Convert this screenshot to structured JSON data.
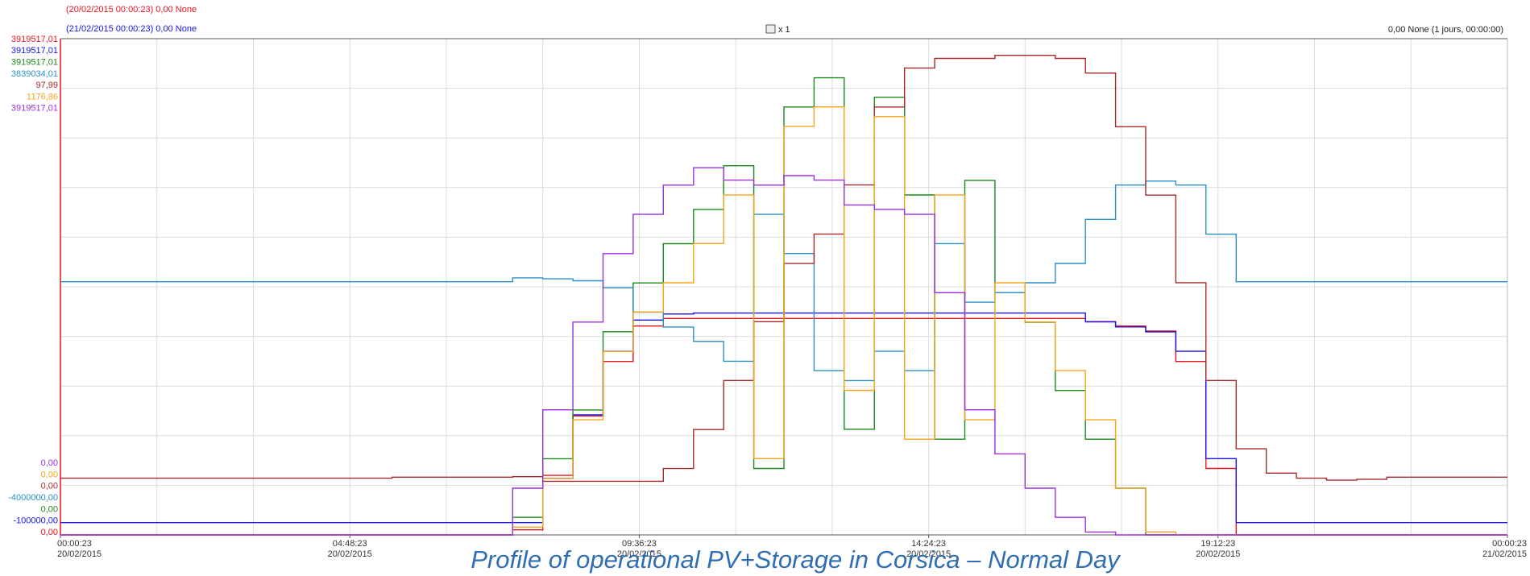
{
  "chart_data": {
    "type": "line",
    "header_lines": [
      {
        "text": "(20/02/2015 00:00:23) 0,00 None",
        "color": "#e8141b"
      },
      {
        "text": "(21/02/2015 00:00:23) 0,00 None",
        "color": "#1515e0"
      }
    ],
    "zoom_label": "x 1",
    "cursor_info": "0,00 None (1 jours, 00:00:00)",
    "caption": "Profile of operational PV+Storage in Corsica – Normal Day",
    "grid": true,
    "xlim": [
      "20/02/2015 00:00:23",
      "21/02/2015 00:00:23"
    ],
    "xticks": [
      {
        "time": "00:00:23",
        "date": "20/02/2015"
      },
      {
        "time": "04:48:23",
        "date": "20/02/2015"
      },
      {
        "time": "09:36:23",
        "date": "20/02/2015"
      },
      {
        "time": "14:24:23",
        "date": "20/02/2015"
      },
      {
        "time": "19:12:23",
        "date": "20/02/2015"
      },
      {
        "time": "00:00:23",
        "date": "21/02/2015"
      }
    ],
    "x": [
      "20/02/2015 00:00:23",
      "20/02/2015 00:30:23",
      "20/02/2015 01:00:23",
      "20/02/2015 01:30:23",
      "20/02/2015 02:00:23",
      "20/02/2015 02:30:23",
      "20/02/2015 03:00:23",
      "20/02/2015 03:30:23",
      "20/02/2015 04:00:23",
      "20/02/2015 04:30:23",
      "20/02/2015 05:00:23",
      "20/02/2015 05:30:23",
      "20/02/2015 06:00:23",
      "20/02/2015 06:30:23",
      "20/02/2015 07:00:23",
      "20/02/2015 07:30:23",
      "20/02/2015 08:00:23",
      "20/02/2015 08:30:23",
      "20/02/2015 09:00:23",
      "20/02/2015 09:30:23",
      "20/02/2015 10:00:23",
      "20/02/2015 10:30:23",
      "20/02/2015 11:00:23",
      "20/02/2015 11:30:23",
      "20/02/2015 12:00:23",
      "20/02/2015 12:30:23",
      "20/02/2015 13:00:23",
      "20/02/2015 13:30:23",
      "20/02/2015 14:00:23",
      "20/02/2015 14:30:23",
      "20/02/2015 15:00:23",
      "20/02/2015 15:30:23",
      "20/02/2015 16:00:23",
      "20/02/2015 16:30:23",
      "20/02/2015 17:00:23",
      "20/02/2015 17:30:23",
      "20/02/2015 18:00:23",
      "20/02/2015 18:30:23",
      "20/02/2015 19:00:23",
      "20/02/2015 19:30:23",
      "20/02/2015 20:00:23",
      "20/02/2015 20:30:23",
      "20/02/2015 21:00:23",
      "20/02/2015 21:30:23",
      "20/02/2015 22:00:23",
      "20/02/2015 22:30:23",
      "20/02/2015 23:00:23",
      "20/02/2015 23:30:23",
      "21/02/2015 00:00:23"
    ],
    "series": [
      {
        "color": "#e8141b",
        "ylim": [
          0,
          3919517.01
        ],
        "yticks": [
          {
            "value": 0,
            "label": "0,00"
          },
          {
            "value": 3919517.01,
            "label": "3919517,01"
          }
        ],
        "values": [
          0,
          0,
          0,
          0,
          0,
          0,
          0,
          0,
          0,
          0,
          0,
          0,
          0,
          0,
          0,
          40000,
          470000,
          940000,
          1370000,
          1650000,
          1710000,
          1710000,
          1710000,
          1710000,
          1710000,
          1710000,
          1710000,
          1710000,
          1710000,
          1710000,
          1710000,
          1710000,
          1710000,
          1710000,
          1685000,
          1650000,
          1610000,
          1370000,
          525000,
          0,
          0,
          0,
          0,
          0,
          0,
          0,
          0,
          0,
          0
        ]
      },
      {
        "color": "#1515e0",
        "ylim": [
          -100000,
          3919517.01
        ],
        "yticks": [
          {
            "value": -100000,
            "label": "-100000,00"
          },
          {
            "value": 3919517.01,
            "label": "3919517,01"
          }
        ],
        "values": [
          0,
          0,
          0,
          0,
          0,
          0,
          0,
          0,
          0,
          0,
          0,
          0,
          0,
          0,
          0,
          0,
          358000,
          873000,
          1387000,
          1640000,
          1689000,
          1697000,
          1697000,
          1697000,
          1697000,
          1697000,
          1697000,
          1697000,
          1697000,
          1697000,
          1697000,
          1697000,
          1697000,
          1697000,
          1625000,
          1585000,
          1545000,
          1387000,
          518000,
          0,
          0,
          0,
          0,
          0,
          0,
          0,
          0,
          0,
          0
        ]
      },
      {
        "color": "#1a8a1a",
        "ylim": [
          0,
          3919517.01
        ],
        "yticks": [
          {
            "value": 0,
            "label": "0,00"
          },
          {
            "value": 3919517.01,
            "label": "3919517,01"
          }
        ],
        "values": [
          0,
          0,
          0,
          0,
          0,
          0,
          0,
          0,
          0,
          0,
          0,
          0,
          0,
          0,
          0,
          139000,
          602000,
          987000,
          1605000,
          1990000,
          2300000,
          2570000,
          2916000,
          525000,
          3380000,
          3610000,
          835000,
          3457000,
          2685000,
          756000,
          2800000,
          1913000,
          1680000,
          1141000,
          756000,
          369000,
          0,
          0,
          0,
          0,
          0,
          0,
          0,
          0,
          0,
          0,
          0,
          0,
          0
        ]
      },
      {
        "color": "#2a8fc8",
        "ylim": [
          -4000000,
          3839034.01
        ],
        "yticks": [
          {
            "value": -4000000,
            "label": "-4000000,00"
          },
          {
            "value": 3839034.01,
            "label": "3839034,01"
          }
        ],
        "values": [
          0,
          0,
          0,
          0,
          0,
          0,
          0,
          0,
          0,
          0,
          0,
          0,
          0,
          0,
          0,
          61000,
          46000,
          15000,
          -96000,
          -480000,
          -715000,
          -943000,
          -1256000,
          1064000,
          445000,
          -1405000,
          -1562000,
          -1100000,
          -1405000,
          601000,
          -323000,
          -174000,
          -17000,
          288000,
          985000,
          1527000,
          1589000,
          1527000,
          751000,
          0,
          0,
          0,
          0,
          0,
          0,
          0,
          0,
          0,
          0
        ]
      },
      {
        "color": "#a8282a",
        "ylim": [
          0,
          97.99
        ],
        "yticks": [
          {
            "value": 0,
            "label": "0,00"
          },
          {
            "value": 97.99,
            "label": "97,99"
          }
        ],
        "values": [
          11.2,
          11.2,
          11.2,
          11.2,
          11.2,
          11.2,
          11.2,
          11.2,
          11.2,
          11.2,
          11.2,
          11.4,
          11.4,
          11.4,
          11.4,
          11.5,
          10.6,
          10.6,
          10.6,
          10.6,
          13.1,
          20.8,
          30.5,
          42.1,
          53.6,
          59.4,
          69.1,
          84.5,
          92.2,
          94.1,
          94.1,
          94.7,
          94.7,
          94.1,
          91.2,
          80.6,
          67.1,
          49.8,
          30.5,
          17.0,
          12.2,
          11.2,
          10.8,
          11.0,
          11.4,
          11.4,
          11.4,
          11.4,
          11.4
        ]
      },
      {
        "color": "#f7a41c",
        "ylim": [
          0,
          1176.86
        ],
        "yticks": [
          {
            "value": 0,
            "label": "0,00"
          },
          {
            "value": 1176.86,
            "label": "1176,86"
          }
        ],
        "values": [
          0,
          0,
          0,
          0,
          0,
          0,
          0,
          0,
          0,
          0,
          0,
          0,
          0,
          0,
          0,
          18.5,
          134,
          273,
          435,
          528,
          598,
          691,
          806,
          181,
          969,
          1015,
          343,
          992,
          227,
          806,
          273,
          598,
          505,
          390,
          273,
          111,
          7,
          0,
          0,
          0,
          0,
          0,
          0,
          0,
          0,
          0,
          0,
          0,
          0
        ]
      },
      {
        "color": "#9b30e0",
        "ylim": [
          0,
          3919517.01
        ],
        "yticks": [
          {
            "value": 0,
            "label": "0,00"
          },
          {
            "value": 3919517.01,
            "label": "3919517,01"
          }
        ],
        "values": [
          0,
          0,
          0,
          0,
          0,
          0,
          0,
          0,
          0,
          0,
          0,
          0,
          0,
          0,
          0,
          369000,
          988000,
          1681000,
          2222000,
          2532000,
          2763000,
          2900000,
          2802000,
          2763000,
          2838000,
          2802000,
          2606000,
          2571000,
          2532000,
          1913000,
          988000,
          640000,
          369000,
          139000,
          23000,
          0,
          0,
          0,
          0,
          0,
          0,
          0,
          0,
          0,
          0,
          0,
          0,
          0,
          0
        ]
      }
    ]
  }
}
